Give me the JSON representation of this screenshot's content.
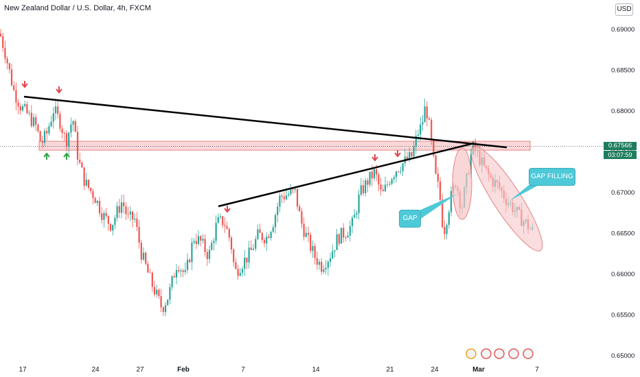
{
  "header": {
    "title": "New Zealand Dollar / U.S. Dollar, 4h, FXCM",
    "currency_button": "USD"
  },
  "price_axis": {
    "last_price": "0.67566",
    "countdown": "03:07:59"
  },
  "annotations": {
    "gap_label": "GAP",
    "gap_filling_label": "GAP FILLING"
  },
  "colors": {
    "up": "#26a69a",
    "up_dark": "#1e7d5e",
    "down": "#ef5350",
    "zone_fill": "#f6c6c8",
    "trendline": "#000000",
    "callout": "#4ec9d8"
  },
  "chart_data": {
    "type": "candlestick",
    "title": "New Zealand Dollar / U.S. Dollar, 4h, FXCM",
    "ylim": [
      0.6497,
      0.6922
    ],
    "y_ticks": [
      "0.69000",
      "0.68500",
      "0.68000",
      "0.67500",
      "0.67000",
      "0.66500",
      "0.66000",
      "0.65500",
      "0.65000"
    ],
    "y_tick_values": [
      0.69,
      0.685,
      0.68,
      0.675,
      0.67,
      0.665,
      0.66,
      0.655,
      0.65
    ],
    "x_ticks": [
      "17",
      "24",
      "27",
      "Feb",
      "7",
      "14",
      "21",
      "24",
      "Mar",
      "7"
    ],
    "last_price": 0.67566,
    "path_points": [
      [
        0,
        0.6895
      ],
      [
        8,
        0.687
      ],
      [
        20,
        0.6825
      ],
      [
        30,
        0.6806
      ],
      [
        40,
        0.6796
      ],
      [
        52,
        0.6782
      ],
      [
        60,
        0.676
      ],
      [
        68,
        0.6772
      ],
      [
        78,
        0.6802
      ],
      [
        88,
        0.6786
      ],
      [
        96,
        0.6762
      ],
      [
        106,
        0.6792
      ],
      [
        114,
        0.674
      ],
      [
        124,
        0.6712
      ],
      [
        138,
        0.6695
      ],
      [
        150,
        0.6672
      ],
      [
        162,
        0.666
      ],
      [
        178,
        0.669
      ],
      [
        186,
        0.6668
      ],
      [
        196,
        0.6668
      ],
      [
        206,
        0.6625
      ],
      [
        220,
        0.659
      ],
      [
        236,
        0.6558
      ],
      [
        246,
        0.6575
      ],
      [
        258,
        0.6615
      ],
      [
        270,
        0.6598
      ],
      [
        282,
        0.6645
      ],
      [
        292,
        0.664
      ],
      [
        304,
        0.6622
      ],
      [
        316,
        0.6663
      ],
      [
        326,
        0.6665
      ],
      [
        336,
        0.664
      ],
      [
        342,
        0.6602
      ],
      [
        354,
        0.6615
      ],
      [
        364,
        0.6625
      ],
      [
        376,
        0.6648
      ],
      [
        388,
        0.6645
      ],
      [
        398,
        0.6665
      ],
      [
        408,
        0.6695
      ],
      [
        420,
        0.6698
      ],
      [
        430,
        0.67
      ],
      [
        438,
        0.6665
      ],
      [
        448,
        0.6642
      ],
      [
        458,
        0.6622
      ],
      [
        468,
        0.661
      ],
      [
        480,
        0.6622
      ],
      [
        492,
        0.6645
      ],
      [
        504,
        0.6652
      ],
      [
        514,
        0.6662
      ],
      [
        524,
        0.6698
      ],
      [
        536,
        0.6715
      ],
      [
        546,
        0.6725
      ],
      [
        556,
        0.6695
      ],
      [
        568,
        0.6718
      ],
      [
        578,
        0.673
      ],
      [
        590,
        0.6738
      ],
      [
        600,
        0.6745
      ],
      [
        608,
        0.6772
      ],
      [
        614,
        0.6782
      ],
      [
        620,
        0.6808
      ],
      [
        626,
        0.6775
      ],
      [
        634,
        0.672
      ],
      [
        640,
        0.67
      ],
      [
        646,
        0.665
      ],
      [
        656,
        0.6692
      ],
      [
        664,
        0.6715
      ],
      [
        672,
        0.668
      ],
      [
        680,
        0.6718
      ],
      [
        688,
        0.6756
      ],
      [
        696,
        0.6746
      ],
      [
        706,
        0.6728
      ],
      [
        716,
        0.6715
      ],
      [
        726,
        0.6708
      ],
      [
        736,
        0.6693
      ],
      [
        746,
        0.6683
      ],
      [
        756,
        0.6671
      ],
      [
        766,
        0.6662
      ],
      [
        776,
        0.6652
      ]
    ],
    "resistance_zone": [
      0.6752,
      0.6763
    ],
    "trendlines": [
      {
        "from": [
          "17",
          0.6815
        ],
        "to": [
          "Mar",
          0.6755
        ]
      },
      {
        "from": [
          "Feb",
          0.6682
        ],
        "to": [
          "Mar",
          0.6758
        ]
      }
    ],
    "markers": {
      "down_arrows": 5,
      "up_arrows": 2
    },
    "annotations": [
      "GAP",
      "GAP FILLING"
    ]
  }
}
